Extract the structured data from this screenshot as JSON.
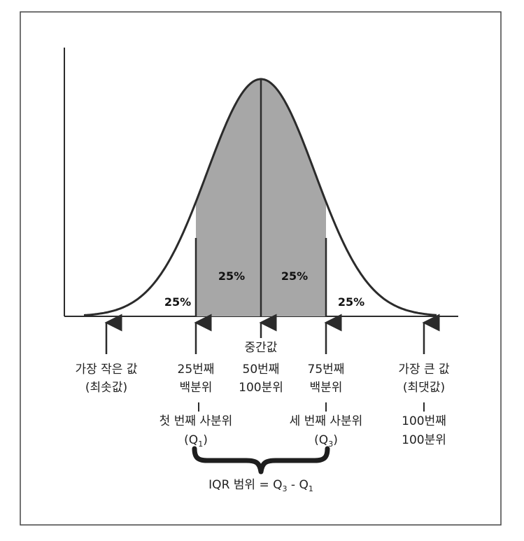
{
  "regions": [
    {
      "key": "q1_tail",
      "label": "25%"
    },
    {
      "key": "q1_median",
      "label": "25%"
    },
    {
      "key": "median_q3",
      "label": "25%"
    },
    {
      "key": "q3_tail",
      "label": "25%"
    }
  ],
  "markers": {
    "min": {
      "line1": "가장 작은 값",
      "line2": "(최솟값)"
    },
    "p25": {
      "line1": "25번째",
      "line2": "백분위",
      "line3": "첫 번째 사분위",
      "line4_prefix": "(Q",
      "line4_sub": "1",
      "line4_suffix": ")"
    },
    "median": {
      "line1": "중간값",
      "line2": "50번째",
      "line3": "100분위"
    },
    "p75": {
      "line1": "75번째",
      "line2": "백분위",
      "line3": "세 번째 사분위",
      "line4_prefix": "(Q",
      "line4_sub": "3",
      "line4_suffix": ")"
    },
    "max": {
      "line1": "가장 큰 값",
      "line2": "(최댓값)",
      "line3": "100번째",
      "line4": "100분위"
    }
  },
  "iqr": {
    "prefix": "IQR 범위 = Q",
    "sub1": "3",
    "minus": " - Q",
    "sub2": "1"
  },
  "colors": {
    "shade": "#a7a7a7",
    "line": "#2b2b2b",
    "frame": "#444444"
  }
}
